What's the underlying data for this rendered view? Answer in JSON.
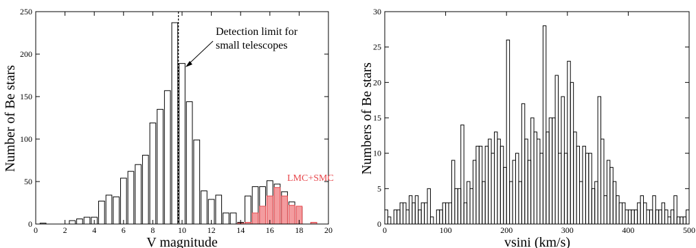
{
  "colors": {
    "outline": "#000000",
    "highlight": "#e8474c",
    "highlight_fill": "#f39c9f"
  },
  "chart_data": [
    {
      "type": "bar",
      "xlabel": "V magnitude",
      "ylabel": "Number of Be stars",
      "xlim": [
        0,
        20
      ],
      "ylim": [
        0,
        250
      ],
      "xticks": [
        0,
        2,
        4,
        6,
        8,
        10,
        12,
        14,
        16,
        18,
        20
      ],
      "yticks": [
        0,
        50,
        100,
        150,
        200,
        250
      ],
      "bin_width": 0.5,
      "series": [
        {
          "name": "",
          "style": "outline",
          "bins": [
            {
              "x": 0.5,
              "y": 1
            },
            {
              "x": 2.5,
              "y": 4
            },
            {
              "x": 3.0,
              "y": 6
            },
            {
              "x": 3.5,
              "y": 8
            },
            {
              "x": 4.0,
              "y": 8
            },
            {
              "x": 4.5,
              "y": 27
            },
            {
              "x": 5.0,
              "y": 34
            },
            {
              "x": 5.5,
              "y": 32
            },
            {
              "x": 6.0,
              "y": 54
            },
            {
              "x": 6.5,
              "y": 62
            },
            {
              "x": 7.0,
              "y": 70
            },
            {
              "x": 7.5,
              "y": 81
            },
            {
              "x": 8.0,
              "y": 119
            },
            {
              "x": 8.5,
              "y": 135
            },
            {
              "x": 9.0,
              "y": 157
            },
            {
              "x": 9.5,
              "y": 237
            },
            {
              "x": 10.0,
              "y": 189
            },
            {
              "x": 10.5,
              "y": 144
            },
            {
              "x": 11.0,
              "y": 99
            },
            {
              "x": 11.5,
              "y": 39
            },
            {
              "x": 12.0,
              "y": 29
            },
            {
              "x": 12.5,
              "y": 34
            },
            {
              "x": 13.0,
              "y": 13
            },
            {
              "x": 13.5,
              "y": 13
            },
            {
              "x": 14.0,
              "y": 2
            },
            {
              "x": 14.5,
              "y": 33
            },
            {
              "x": 15.0,
              "y": 44
            },
            {
              "x": 15.5,
              "y": 44
            },
            {
              "x": 16.0,
              "y": 51
            },
            {
              "x": 16.5,
              "y": 47
            },
            {
              "x": 17.0,
              "y": 38
            },
            {
              "x": 17.5,
              "y": 26
            },
            {
              "x": 18.0,
              "y": 20
            },
            {
              "x": 19.0,
              "y": 2
            }
          ]
        },
        {
          "name": "LMC+SMC",
          "style": "filled",
          "bins": [
            {
              "x": 14.0,
              "y": 1
            },
            {
              "x": 14.5,
              "y": 2
            },
            {
              "x": 15.0,
              "y": 13
            },
            {
              "x": 15.5,
              "y": 21
            },
            {
              "x": 16.0,
              "y": 33
            },
            {
              "x": 16.5,
              "y": 43
            },
            {
              "x": 17.0,
              "y": 33
            },
            {
              "x": 17.5,
              "y": 22
            },
            {
              "x": 18.0,
              "y": 21
            },
            {
              "x": 19.0,
              "y": 2
            }
          ]
        }
      ],
      "vline": {
        "x": 9.75,
        "style": "dashed"
      },
      "annotation": {
        "lines": [
          "Detection limit for",
          "small telescopes"
        ],
        "arrow_to_x": 9.75
      },
      "legend_label": "LMC+SMC"
    },
    {
      "type": "bar",
      "xlabel": "vsini (km/s)",
      "ylabel": "Numbers of Be stars",
      "xlim": [
        0,
        500
      ],
      "ylim": [
        0,
        30
      ],
      "xticks": [
        0,
        100,
        200,
        300,
        400,
        500
      ],
      "yticks": [
        0,
        5,
        10,
        15,
        20,
        25,
        30
      ],
      "bin_width": 5,
      "values": [
        2,
        1,
        0,
        2,
        2,
        3,
        3,
        2,
        4,
        3,
        4,
        2,
        3,
        3,
        5,
        1,
        0,
        2,
        2,
        3,
        3,
        3,
        9,
        5,
        5,
        14,
        3,
        6,
        5,
        9,
        11,
        11,
        6,
        11,
        12,
        10,
        13,
        12,
        11,
        8,
        26,
        6,
        9,
        10,
        6,
        17,
        12,
        9,
        15,
        13,
        12,
        10,
        28,
        13,
        15,
        15,
        21,
        10,
        18,
        10,
        23,
        20,
        13,
        11,
        6,
        11,
        10,
        10,
        5,
        6,
        18,
        12,
        4,
        9,
        8,
        6,
        4,
        3,
        3,
        2,
        2,
        2,
        2,
        3,
        4,
        3,
        2,
        2,
        4,
        2,
        2,
        3,
        2,
        1,
        2,
        4,
        1,
        1,
        1,
        2,
        3,
        1
      ]
    }
  ]
}
